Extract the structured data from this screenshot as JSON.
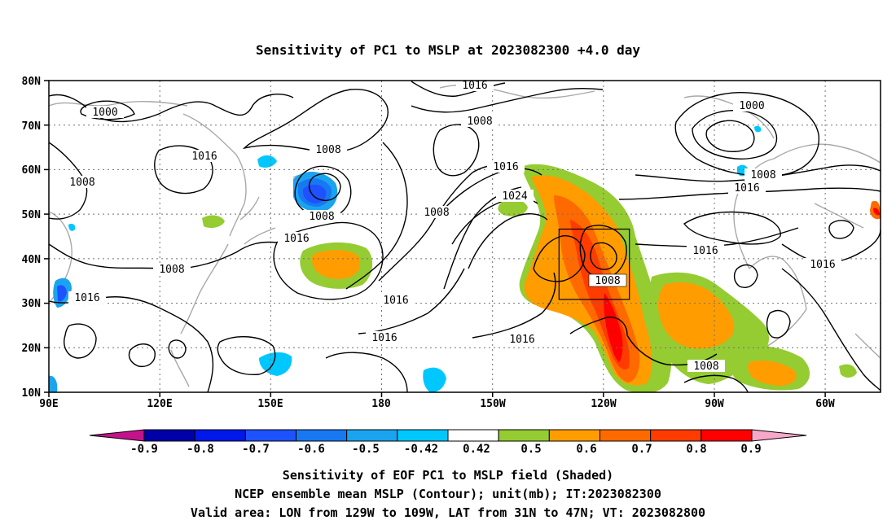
{
  "title": "Sensitivity of PC1 to MSLP at 2023082300 +4.0 day",
  "lon_labels": [
    "90E",
    "120E",
    "150E",
    "180",
    "150W",
    "120W",
    "90W",
    "60W"
  ],
  "lat_labels": [
    "80N",
    "70N",
    "60N",
    "50N",
    "40N",
    "30N",
    "20N",
    "10N"
  ],
  "colorbar": {
    "ticks": [
      "-0.9",
      "-0.8",
      "-0.7",
      "-0.6",
      "-0.5",
      "-0.42",
      "0.42",
      "0.5",
      "0.6",
      "0.7",
      "0.8",
      "0.9"
    ],
    "colors": [
      "#c4128b",
      "#0000a8",
      "#0018ea",
      "#1e52ff",
      "#1878f2",
      "#1aa4f0",
      "#00c8ff",
      "#ffffff",
      "#95cc32",
      "#ff9d00",
      "#ff6a00",
      "#ff3c00",
      "#ff0000",
      "#f7a7c9"
    ]
  },
  "contour_labels": [
    "1016",
    "1000",
    "1008",
    "1016",
    "1008",
    "1008",
    "1008",
    "1016",
    "1024",
    "1008",
    "1000",
    "1008",
    "1016",
    "1016",
    "1016",
    "1016",
    "1008",
    "1016",
    "1008",
    "1016",
    "1016",
    "1008",
    "1016",
    "1008",
    "1008"
  ],
  "valid_box": {
    "lon_from": "129W",
    "lon_to": "109W",
    "lat_from": "31N",
    "lat_to": "47N"
  },
  "footer": {
    "line1": "Sensitivity of EOF PC1 to MSLP field (Shaded)",
    "line2": "NCEP ensemble mean MSLP (Contour); unit(mb); IT:2023082300",
    "line3": "Valid area: LON from 129W to 109W, LAT from 31N to 47N; VT: 2023082800"
  }
}
